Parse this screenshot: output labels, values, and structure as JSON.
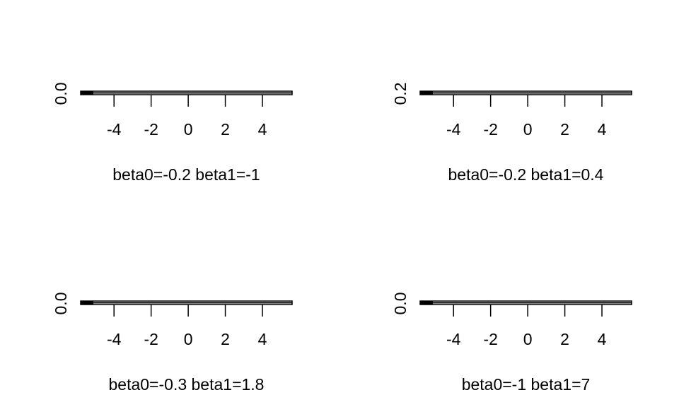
{
  "chart_data": [
    {
      "type": "line",
      "xlabel": "beta0=-0.2   beta1=-1",
      "x_ticks": [
        "-4",
        "-2",
        "0",
        "2",
        "4"
      ],
      "y_ticks": [
        "0.0"
      ],
      "xlim": [
        -5.8,
        5.6
      ],
      "grid": false,
      "series": [
        {
          "x": [
            -5.8,
            5.6
          ],
          "y": [
            0.0,
            0.0
          ]
        }
      ]
    },
    {
      "type": "line",
      "xlabel": "beta0=-0.2   beta1=0.4",
      "x_ticks": [
        "-4",
        "-2",
        "0",
        "2",
        "4"
      ],
      "y_ticks": [
        "0.2"
      ],
      "xlim": [
        -5.8,
        5.6
      ],
      "grid": false,
      "series": [
        {
          "x": [
            -5.8,
            5.6
          ],
          "y": [
            0.2,
            0.2
          ]
        }
      ]
    },
    {
      "type": "line",
      "xlabel": "beta0=-0.3   beta1=1.8",
      "x_ticks": [
        "-4",
        "-2",
        "0",
        "2",
        "4"
      ],
      "y_ticks": [
        "0.0"
      ],
      "xlim": [
        -5.8,
        5.6
      ],
      "grid": false,
      "series": [
        {
          "x": [
            -5.8,
            5.6
          ],
          "y": [
            0.0,
            0.0
          ]
        }
      ]
    },
    {
      "type": "line",
      "xlabel": "beta0=-1   beta1=7",
      "x_ticks": [
        "-4",
        "-2",
        "0",
        "2",
        "4"
      ],
      "y_ticks": [
        "0.0"
      ],
      "xlim": [
        -5.8,
        5.6
      ],
      "grid": false,
      "series": [
        {
          "x": [
            -5.8,
            5.6
          ],
          "y": [
            0.0,
            0.0
          ]
        }
      ]
    }
  ]
}
